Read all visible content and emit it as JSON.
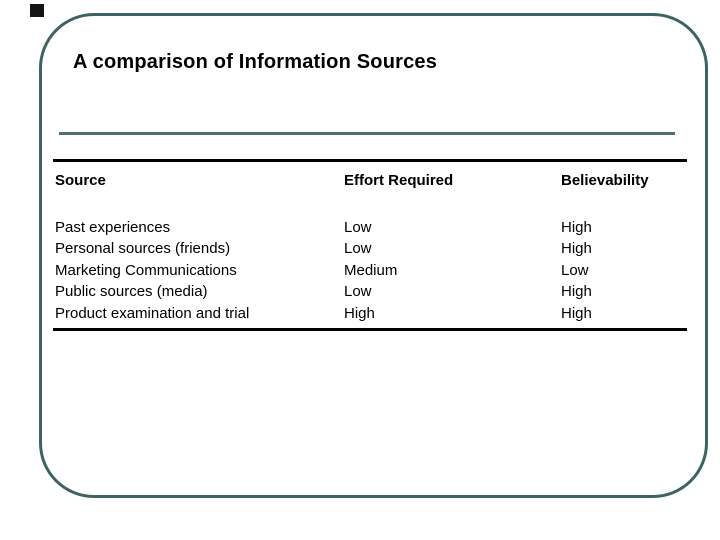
{
  "slide": {
    "title": "A comparison of Information Sources",
    "decor": {
      "corner_square": "black-square-bullet",
      "border_color": "#3e6363",
      "accent_line_color": "#4a7272",
      "rule_color": "#000000"
    }
  },
  "table": {
    "headers": {
      "source": "Source",
      "effort": "Effort Required",
      "believability": "Believability"
    },
    "rows": [
      {
        "source": "Past experiences",
        "effort": "Low",
        "believability": "High"
      },
      {
        "source": "Personal sources (friends)",
        "effort": "Low",
        "believability": "High"
      },
      {
        "source": "Marketing Communications",
        "effort": "Medium",
        "believability": "Low"
      },
      {
        "source": "Public sources (media)",
        "effort": "Low",
        "believability": "High"
      },
      {
        "source": "Product examination and trial",
        "effort": "High",
        "believability": "High"
      }
    ]
  }
}
